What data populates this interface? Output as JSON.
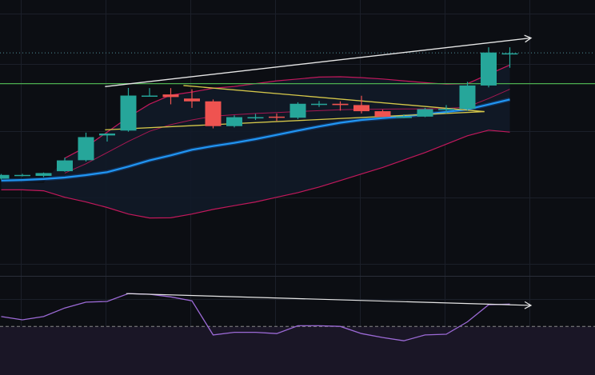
{
  "colors": {
    "background": "#0c0e13",
    "grid": "#1b1f29",
    "bull": "#26a69a",
    "bear": "#ef5350",
    "bb_band": "#c2185b",
    "bb_basis": "#c2185b",
    "bb_fill": "#111a28",
    "ma": "#2196f3",
    "ma_glow": "#1565c0",
    "triangle": "#d6c84a",
    "trend_line": "#e6e6e6",
    "level_line": "#4caf50",
    "price_dotted": "#4f8f99",
    "rsi": "#9c6ad6",
    "rsi_fill": "#1a1626",
    "rsi_ref": "#888888",
    "separator": "#2a2e39"
  },
  "chart_data": [
    {
      "type": "candlestick",
      "title": "",
      "overlays": [
        "bollinger_bands",
        "moving_average",
        "symmetrical_triangle",
        "upper_trendline",
        "horizontal_level"
      ],
      "grid": true,
      "ylim": [
        0,
        100
      ],
      "candles": [
        {
          "x": 0,
          "open": 29.0,
          "high": 31.5,
          "low": 28.5,
          "close": 31.0
        },
        {
          "x": 1,
          "open": 30.8,
          "high": 31.6,
          "low": 30.2,
          "close": 31.0
        },
        {
          "x": 2,
          "open": 30.5,
          "high": 32.3,
          "low": 29.8,
          "close": 32.0
        },
        {
          "x": 3,
          "open": 33.0,
          "high": 40.3,
          "low": 32.7,
          "close": 38.8
        },
        {
          "x": 4,
          "open": 38.9,
          "high": 53.7,
          "low": 38.2,
          "close": 51.3
        },
        {
          "x": 5,
          "open": 52.2,
          "high": 53.3,
          "low": 48.9,
          "close": 53.2
        },
        {
          "x": 6,
          "open": 54.8,
          "high": 77.7,
          "low": 54.2,
          "close": 73.6
        },
        {
          "x": 7,
          "open": 73.6,
          "high": 77.6,
          "low": 73.1,
          "close": 73.6
        },
        {
          "x": 8,
          "open": 74.2,
          "high": 77.6,
          "low": 68.9,
          "close": 72.8
        },
        {
          "x": 9,
          "open": 72.0,
          "high": 77.0,
          "low": 67.0,
          "close": 70.5
        },
        {
          "x": 10,
          "open": 70.5,
          "high": 71.5,
          "low": 56.0,
          "close": 57.2
        },
        {
          "x": 11,
          "open": 57.2,
          "high": 63.0,
          "low": 56.5,
          "close": 62.0
        },
        {
          "x": 12,
          "open": 62.0,
          "high": 63.8,
          "low": 60.5,
          "close": 62.0
        },
        {
          "x": 13,
          "open": 62.3,
          "high": 64.0,
          "low": 60.0,
          "close": 61.7
        },
        {
          "x": 14,
          "open": 61.7,
          "high": 70.0,
          "low": 61.0,
          "close": 69.2
        },
        {
          "x": 15,
          "open": 69.2,
          "high": 70.7,
          "low": 67.5,
          "close": 69.2
        },
        {
          "x": 16,
          "open": 69.2,
          "high": 70.5,
          "low": 65.5,
          "close": 68.5
        },
        {
          "x": 17,
          "open": 68.5,
          "high": 73.5,
          "low": 64.0,
          "close": 65.2
        },
        {
          "x": 18,
          "open": 65.2,
          "high": 66.0,
          "low": 62.0,
          "close": 62.2
        },
        {
          "x": 19,
          "open": 62.2,
          "high": 63.5,
          "low": 61.5,
          "close": 62.2
        },
        {
          "x": 20,
          "open": 62.3,
          "high": 67.0,
          "low": 62.0,
          "close": 66.3
        },
        {
          "x": 21,
          "open": 66.3,
          "high": 68.5,
          "low": 64.0,
          "close": 66.5
        },
        {
          "x": 22,
          "open": 66.5,
          "high": 81.0,
          "low": 65.5,
          "close": 79.0
        },
        {
          "x": 23,
          "open": 79.0,
          "high": 99.5,
          "low": 78.0,
          "close": 96.7
        },
        {
          "x": 24,
          "open": 96.0,
          "high": 99.5,
          "low": 88.5,
          "close": 96.3
        }
      ],
      "bollinger_upper": [
        null,
        null,
        null,
        40,
        46,
        54,
        62,
        69,
        73.8,
        75.5,
        77.5,
        78.5,
        80,
        81.5,
        82.5,
        83.5,
        83.7,
        83.2,
        82.5,
        81.5,
        80.5,
        79.7,
        80,
        85,
        90
      ],
      "bollinger_basis": [
        null,
        null,
        null,
        32,
        37,
        43,
        49,
        54.4,
        58,
        60.5,
        62.5,
        63.3,
        64,
        64.5,
        65,
        65.5,
        66,
        66.2,
        66.3,
        66.4,
        66.5,
        66.6,
        67.5,
        72,
        77
      ],
      "bollinger_lower": [
        23,
        23,
        22.5,
        19,
        16.5,
        13.5,
        10,
        7.9,
        8,
        10,
        12.5,
        14.5,
        16.5,
        19,
        21.5,
        24.5,
        28,
        31.5,
        35,
        39,
        43,
        47.5,
        52,
        55,
        54
      ],
      "moving_average": [
        28,
        28.3,
        28.8,
        29.6,
        30.9,
        32.5,
        35.5,
        38.8,
        41.5,
        44.5,
        46.5,
        48.2,
        50.2,
        52.5,
        54.8,
        57,
        59,
        60.5,
        61.5,
        62.4,
        63.5,
        64.8,
        66.2,
        68.8,
        71.5
      ],
      "triangle": {
        "upper": [
          {
            "x": 8.6,
            "y": 79
          },
          {
            "x": 22.8,
            "y": 65
          }
        ],
        "lower": [
          {
            "x": 4.9,
            "y": 55.2
          },
          {
            "x": 22.8,
            "y": 65
          }
        ]
      },
      "upper_trendline": [
        {
          "x": 4.9,
          "y": 78.4
        },
        {
          "x": 25.0,
          "y": 104.5
        }
      ],
      "horizontal_level": 80.0,
      "last_price": 96.3
    },
    {
      "type": "line",
      "title": "",
      "indicator": "rsi",
      "ylim": [
        0,
        100
      ],
      "reference_line": 40,
      "values": [
        55,
        50,
        55,
        68,
        77,
        78,
        90,
        89,
        85,
        79,
        27,
        31,
        31,
        29,
        41,
        41,
        40,
        29,
        23,
        18,
        27,
        28,
        47,
        73,
        74
      ],
      "divergence_line": [
        {
          "x": 5.9,
          "y": 90
        },
        {
          "x": 25.0,
          "y": 72
        }
      ]
    }
  ]
}
